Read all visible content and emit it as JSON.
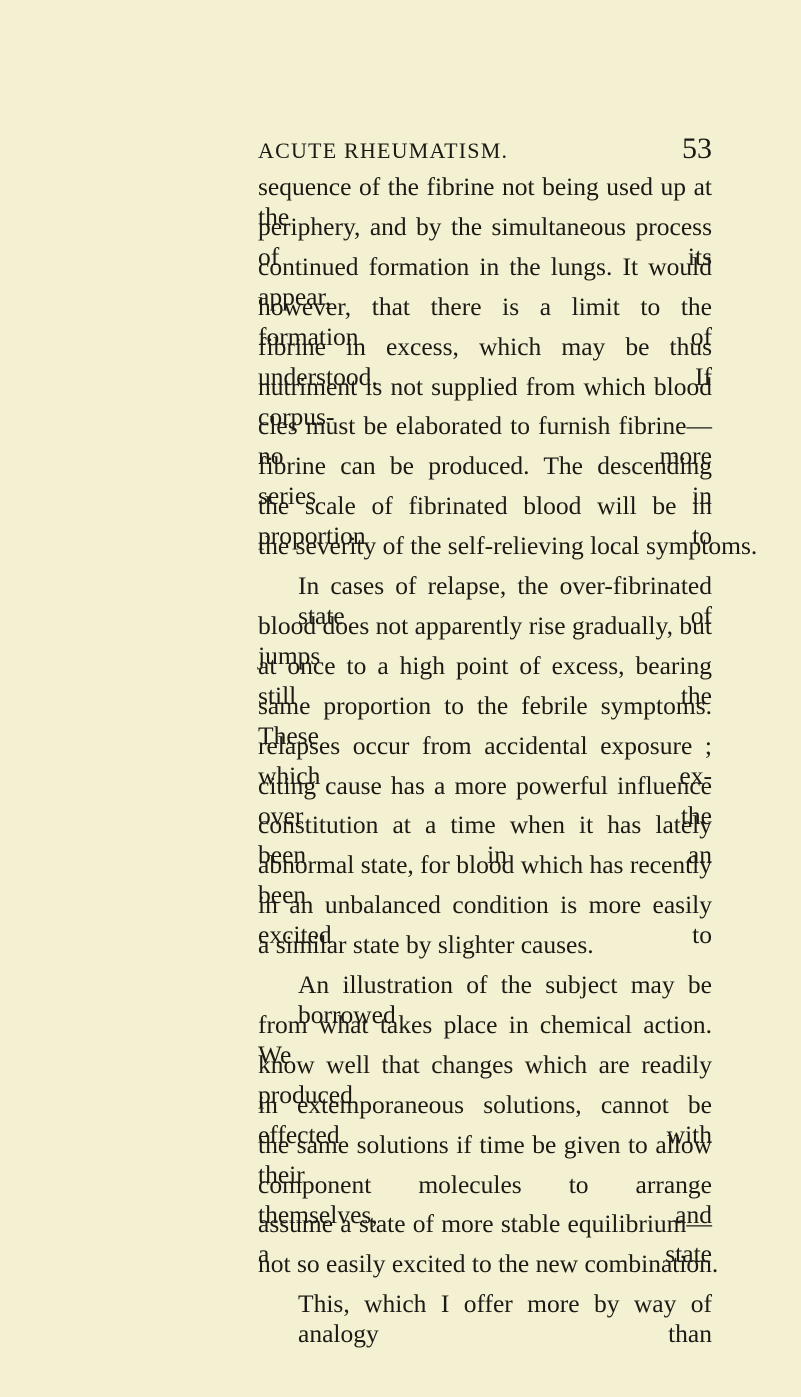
{
  "header": {
    "title": "ACUTE RHEUMATISM.",
    "page_number": "53"
  },
  "body": {
    "paragraphs": [
      {
        "lines": [
          "sequence of the fibrine not being used up at the",
          "periphery, and by the simultaneous process of its",
          "continued formation in the lungs. It would appear,",
          "however, that there is a limit to the formation of",
          "fibrine in excess, which may be thus understood. If",
          "nutriment is not supplied from which blood corpus-",
          "cles must be elaborated to furnish fibrine—no more",
          "fibrine can be produced. The descending series in",
          "the scale of fibrinated blood will be in proportion to",
          "the severity of the self-relieving local symptoms."
        ]
      },
      {
        "lines": [
          "In cases of relapse, the over-fibrinated state of",
          "blood does not apparently rise gradually, but jumps",
          "at once to a high point of excess, bearing still the",
          "same proportion to the febrile symptoms. These",
          "relapses occur from accidental exposure ; which ex-",
          "citing cause has a more powerful influence over the",
          "constitution at a time when it has lately been in an",
          "abnormal state, for blood which has recently been",
          "in an unbalanced condition is more easily excited to",
          "a similar state by slighter causes."
        ]
      },
      {
        "lines": [
          "An illustration of the subject may be borrowed",
          "from what takes place in chemical action. We",
          "know well that changes which are readily produced",
          "in extemporaneous solutions, cannot be effected with",
          "the same solutions if time be given to allow their",
          "component molecules to arrange themselves, and",
          "assume a state of more stable equilibrium—a state",
          "not so easily excited to the new combination."
        ]
      },
      {
        "lines": [
          "This, which I offer more by way of analogy than"
        ]
      }
    ]
  }
}
